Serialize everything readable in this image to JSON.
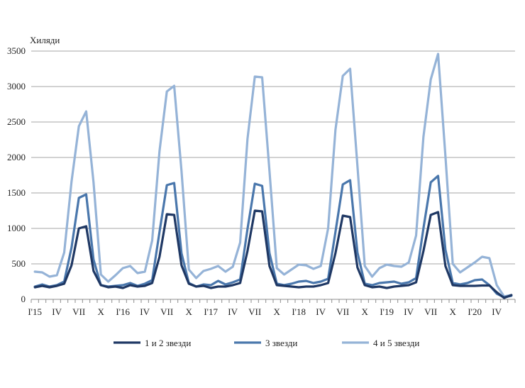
{
  "chart_data": {
    "type": "line",
    "ylabel": "Хиляди",
    "ylim": [
      0,
      3500
    ],
    "yticks": [
      0,
      500,
      1000,
      1500,
      2000,
      2500,
      3000,
      3500
    ],
    "grid": true,
    "legend_position": "bottom",
    "x_tick_labels": [
      "I'15",
      "IV",
      "VII",
      "X",
      "I'16",
      "IV",
      "VII",
      "X",
      "I'17",
      "IV",
      "VII",
      "X",
      "I'18",
      "IV",
      "VII",
      "X",
      "I'19",
      "IV",
      "VII",
      "X",
      "I'20",
      "IV"
    ],
    "series": [
      {
        "name": "1 и 2 звезди",
        "color": "#1f3864",
        "values": [
          170,
          190,
          170,
          190,
          220,
          480,
          1000,
          1030,
          400,
          200,
          170,
          180,
          160,
          200,
          180,
          190,
          230,
          600,
          1200,
          1190,
          480,
          220,
          180,
          190,
          160,
          180,
          180,
          200,
          230,
          680,
          1250,
          1240,
          470,
          200,
          190,
          180,
          170,
          180,
          180,
          200,
          230,
          650,
          1180,
          1160,
          450,
          200,
          170,
          180,
          160,
          180,
          190,
          200,
          240,
          680,
          1190,
          1230,
          470,
          200,
          190,
          190,
          190,
          195,
          195,
          100,
          20,
          60
        ]
      },
      {
        "name": "3 звезди",
        "color": "#4a77ac",
        "values": [
          180,
          210,
          180,
          200,
          250,
          730,
          1430,
          1480,
          560,
          200,
          180,
          190,
          200,
          230,
          190,
          220,
          270,
          950,
          1610,
          1640,
          650,
          230,
          180,
          210,
          200,
          260,
          210,
          240,
          280,
          990,
          1630,
          1600,
          650,
          220,
          200,
          220,
          250,
          260,
          230,
          250,
          290,
          950,
          1620,
          1680,
          660,
          220,
          200,
          230,
          240,
          250,
          220,
          240,
          300,
          1000,
          1650,
          1740,
          700,
          230,
          210,
          230,
          270,
          280,
          200,
          80,
          30,
          50
        ]
      },
      {
        "name": "4 и 5 звезди",
        "color": "#95b3d7",
        "values": [
          390,
          380,
          320,
          340,
          660,
          1660,
          2440,
          2650,
          1650,
          350,
          250,
          340,
          440,
          470,
          370,
          390,
          830,
          2090,
          2930,
          3010,
          1810,
          420,
          300,
          400,
          430,
          470,
          390,
          460,
          800,
          2260,
          3140,
          3130,
          1810,
          440,
          350,
          420,
          490,
          480,
          430,
          470,
          1000,
          2390,
          3150,
          3250,
          1880,
          470,
          320,
          440,
          490,
          470,
          460,
          520,
          900,
          2290,
          3100,
          3460,
          2020,
          500,
          380,
          450,
          520,
          600,
          580,
          200,
          40,
          60
        ]
      }
    ]
  }
}
